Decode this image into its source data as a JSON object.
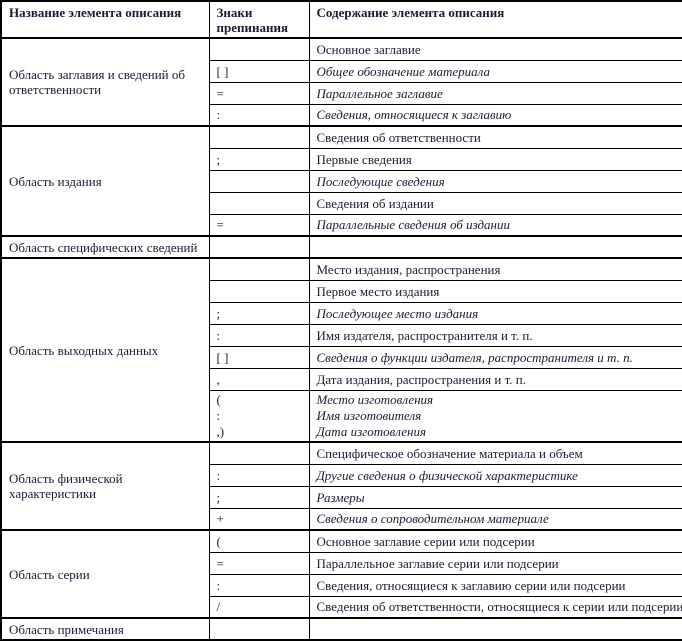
{
  "table": {
    "headers": [
      "Название элемента описания",
      "Знаки препинания",
      "Содержание элемента описания"
    ],
    "groups": [
      {
        "area": "Область заглавия и сведений об ответственности",
        "rows": [
          {
            "punct": "",
            "content": "Основное заглавие",
            "italic": false
          },
          {
            "punct": "[ ]",
            "content": "Общее обозначение материала",
            "italic": true
          },
          {
            "punct": "=",
            "content": "Параллельное заглавие",
            "italic": true
          },
          {
            "punct": ":",
            "content": "Сведения, относящиеся к заглавию",
            "italic": true
          }
        ]
      },
      {
        "area": "Область издания",
        "rows": [
          {
            "punct": "",
            "content": "Сведения об ответственности",
            "italic": false
          },
          {
            "punct": ";",
            "content": "Первые сведения",
            "italic": false
          },
          {
            "punct": "",
            "content": "Последующие сведения",
            "italic": true
          },
          {
            "punct": "",
            "content": "Сведения об издании",
            "italic": false
          },
          {
            "punct": "=",
            "content": "Параллельные сведения об издании",
            "italic": true
          }
        ]
      },
      {
        "area": "Область специфических сведений",
        "rows": [
          {
            "punct": "",
            "content": "",
            "italic": false
          }
        ]
      },
      {
        "area": "Область выходных данных",
        "rows": [
          {
            "punct": "",
            "content": "Место издания, распространения",
            "italic": false
          },
          {
            "punct": "",
            "content": "Первое место издания",
            "italic": false
          },
          {
            "punct": ";",
            "content": "Последующее место издания",
            "italic": true
          },
          {
            "punct": ":",
            "content": "Имя издателя, распространителя и т. п.",
            "italic": false
          },
          {
            "punct": "[ ]",
            "content": "Сведения о функции издателя, распространителя и т. п.",
            "italic": true
          },
          {
            "punct": ",",
            "content": "Дата издания, распространения и т. п.",
            "italic": false
          },
          {
            "punct_lines": [
              "(",
              ":",
              ",)"
            ],
            "content_lines": [
              "Место изготовления",
              "Имя изготовителя",
              "Дата изготовления"
            ],
            "italic": true,
            "tall": true
          }
        ]
      },
      {
        "area": "Область физической характеристики",
        "rows": [
          {
            "punct": "",
            "content": "Специфическое обозначение материала и объем",
            "italic": false
          },
          {
            "punct": ":",
            "content": "Другие сведения о физической характеристике",
            "italic": true
          },
          {
            "punct": ";",
            "content": "Размеры",
            "italic": true
          },
          {
            "punct": "+",
            "content": "Сведения о сопроводительном материале",
            "italic": true
          }
        ]
      },
      {
        "area": "Область серии",
        "rows": [
          {
            "punct": "(",
            "content": "Основное заглавие серии или подсерии",
            "italic": false
          },
          {
            "punct": "=",
            "content": "Параллельное заглавие серии или подсерии",
            "italic": false
          },
          {
            "punct": ":",
            "content": "Сведения, относящиеся к заглавию серии или подсерии",
            "italic": false
          },
          {
            "punct": "/",
            "content": "Сведения об ответственности, относящиеся к серии или подсерии",
            "italic": false
          }
        ]
      },
      {
        "area": "Область примечания",
        "rows": [
          {
            "punct": "",
            "content": "",
            "italic": false
          }
        ]
      }
    ],
    "colors": {
      "text": "#1b1b36",
      "border": "#000000",
      "background": "#ffffff"
    }
  }
}
